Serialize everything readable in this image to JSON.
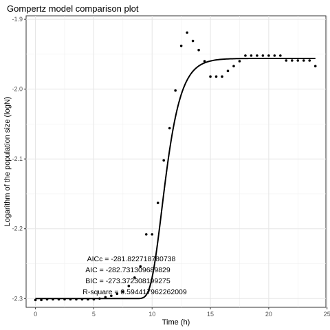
{
  "chart_data": {
    "type": "scatter",
    "title": "Gompertz model comparison plot",
    "xlabel": "Time (h)",
    "ylabel": "Logarithm of the population size (logN)",
    "xlim": [
      -0.8,
      24.9
    ],
    "ylim": [
      -2.3125,
      -1.895
    ],
    "xticks": [
      0,
      5,
      10,
      15,
      20,
      25
    ],
    "yticks": [
      -2.3,
      -2.2,
      -2.1,
      -2.0,
      -1.9
    ],
    "xtick_labels": [
      "0",
      "5",
      "10",
      "15",
      "20",
      "25"
    ],
    "ytick_labels": [
      "-2.3",
      "-2.2",
      "-2.1",
      "-2.0",
      "-1.9"
    ],
    "grid": true,
    "series": [
      {
        "kind": "points",
        "x": [
          0,
          0.5,
          1,
          1.5,
          2,
          2.5,
          3,
          3.5,
          4,
          4.5,
          5,
          5.5,
          6,
          6.5,
          7,
          7.5,
          8,
          8.5,
          9,
          9.5,
          10,
          10.5,
          11,
          11.5,
          12,
          12.5,
          13,
          13.5,
          14,
          14.5,
          15,
          15.5,
          16,
          16.5,
          17,
          17.5,
          18,
          18.5,
          19,
          19.5,
          20,
          20.5,
          21,
          21.5,
          22,
          22.5,
          23,
          23.5,
          24
        ],
        "y": [
          -2.302,
          -2.302,
          -2.301,
          -2.301,
          -2.301,
          -2.301,
          -2.301,
          -2.301,
          -2.301,
          -2.301,
          -2.301,
          -2.3,
          -2.298,
          -2.296,
          -2.293,
          -2.29,
          -2.282,
          -2.27,
          -2.254,
          -2.208,
          -2.208,
          -2.163,
          -2.102,
          -2.056,
          -2.002,
          -1.938,
          -1.919,
          -1.931,
          -1.944,
          -1.96,
          -1.982,
          -1.982,
          -1.982,
          -1.974,
          -1.967,
          -1.96,
          -1.952,
          -1.952,
          -1.952,
          -1.952,
          -1.952,
          -1.952,
          -1.952,
          -1.959,
          -1.959,
          -1.959,
          -1.959,
          -1.959,
          -1.967
        ]
      },
      {
        "kind": "fitted-curve",
        "model": "gompertz",
        "params": {
          "y0": -2.3,
          "A": 0.344,
          "mu": 0.137,
          "lambda": 9.9
        }
      }
    ],
    "annotations": [
      "AICc = -281.822718780738",
      "AIC = -282.731309689829",
      "BIC = -273.372308199275",
      "R-square = 0.594417962262009"
    ]
  }
}
